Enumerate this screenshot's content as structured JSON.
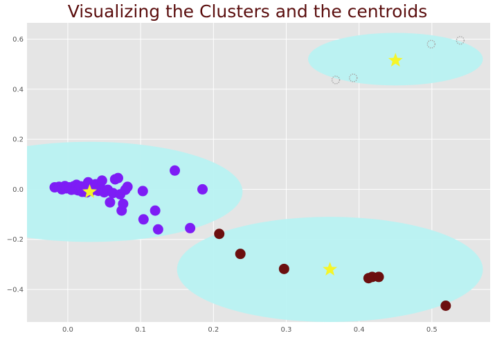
{
  "chart_data": {
    "type": "scatter",
    "title": "Visualizing the Clusters and the centroids",
    "xlabel": "",
    "ylabel": "",
    "xlim": [
      -0.056,
      0.58
    ],
    "ylim": [
      -0.53,
      0.665
    ],
    "grid": true,
    "xticks": [
      0.0,
      0.1,
      0.2,
      0.3,
      0.4,
      0.5
    ],
    "xtick_labels": [
      "0.0",
      "0.1",
      "0.2",
      "0.3",
      "0.4",
      "0.5"
    ],
    "yticks": [
      -0.4,
      -0.2,
      0.0,
      0.2,
      0.4,
      0.6
    ],
    "ytick_labels": [
      "−0.4",
      "−0.2",
      "0.0",
      "0.2",
      "0.4",
      "0.6"
    ],
    "regions": [
      {
        "cx": 0.03,
        "cy": -0.01,
        "rx": 0.21,
        "ry": 0.2
      },
      {
        "cx": 0.36,
        "cy": -0.32,
        "rx": 0.21,
        "ry": 0.21
      },
      {
        "cx": 0.45,
        "cy": 0.52,
        "rx": 0.12,
        "ry": 0.105
      }
    ],
    "series": [
      {
        "color": "#7d1df5",
        "points": [
          [
            -0.018,
            0.008
          ],
          [
            -0.012,
            0.01
          ],
          [
            -0.008,
            0.0
          ],
          [
            -0.004,
            0.013
          ],
          [
            -0.002,
            0.004
          ],
          [
            0.002,
            0.008
          ],
          [
            0.005,
            -0.002
          ],
          [
            0.008,
            0.012
          ],
          [
            0.01,
            0.0
          ],
          [
            0.012,
            0.018
          ],
          [
            0.014,
            -0.004
          ],
          [
            0.016,
            0.006
          ],
          [
            0.018,
            0.012
          ],
          [
            0.02,
            -0.01
          ],
          [
            0.023,
            0.003
          ],
          [
            0.026,
            -0.012
          ],
          [
            0.028,
            0.028
          ],
          [
            0.03,
            0.0
          ],
          [
            0.032,
            -0.006
          ],
          [
            0.036,
            0.008
          ],
          [
            0.038,
            0.02
          ],
          [
            0.042,
            -0.006
          ],
          [
            0.045,
            0.006
          ],
          [
            0.047,
            0.035
          ],
          [
            0.05,
            -0.012
          ],
          [
            0.055,
            -0.002
          ],
          [
            0.058,
            -0.052
          ],
          [
            0.062,
            -0.015
          ],
          [
            0.065,
            0.04
          ],
          [
            0.069,
            0.045
          ],
          [
            0.072,
            -0.02
          ],
          [
            0.074,
            -0.085
          ],
          [
            0.076,
            -0.058
          ],
          [
            0.079,
            -0.002
          ],
          [
            0.082,
            0.01
          ],
          [
            0.103,
            -0.007
          ],
          [
            0.104,
            -0.12
          ],
          [
            0.12,
            -0.085
          ],
          [
            0.124,
            -0.16
          ],
          [
            0.147,
            0.075
          ],
          [
            0.168,
            -0.155
          ],
          [
            0.185,
            0.0
          ]
        ]
      },
      {
        "color": "#6b0f0f",
        "points": [
          [
            0.208,
            -0.178
          ],
          [
            0.237,
            -0.258
          ],
          [
            0.297,
            -0.318
          ],
          [
            0.413,
            -0.355
          ],
          [
            0.418,
            -0.35
          ],
          [
            0.427,
            -0.35
          ],
          [
            0.519,
            -0.465
          ]
        ]
      },
      {
        "color": "#aaaaaa",
        "points": [
          [
            0.368,
            0.437
          ],
          [
            0.392,
            0.445
          ],
          [
            0.499,
            0.58
          ],
          [
            0.539,
            0.595
          ]
        ]
      }
    ],
    "centroids": [
      [
        0.03,
        -0.01
      ],
      [
        0.36,
        -0.32
      ],
      [
        0.45,
        0.515
      ]
    ],
    "colors": {
      "background": "#e5e5e5",
      "grid": "#ffffff",
      "region": "#b8f2f2",
      "centroid": "#f5f52a"
    }
  }
}
